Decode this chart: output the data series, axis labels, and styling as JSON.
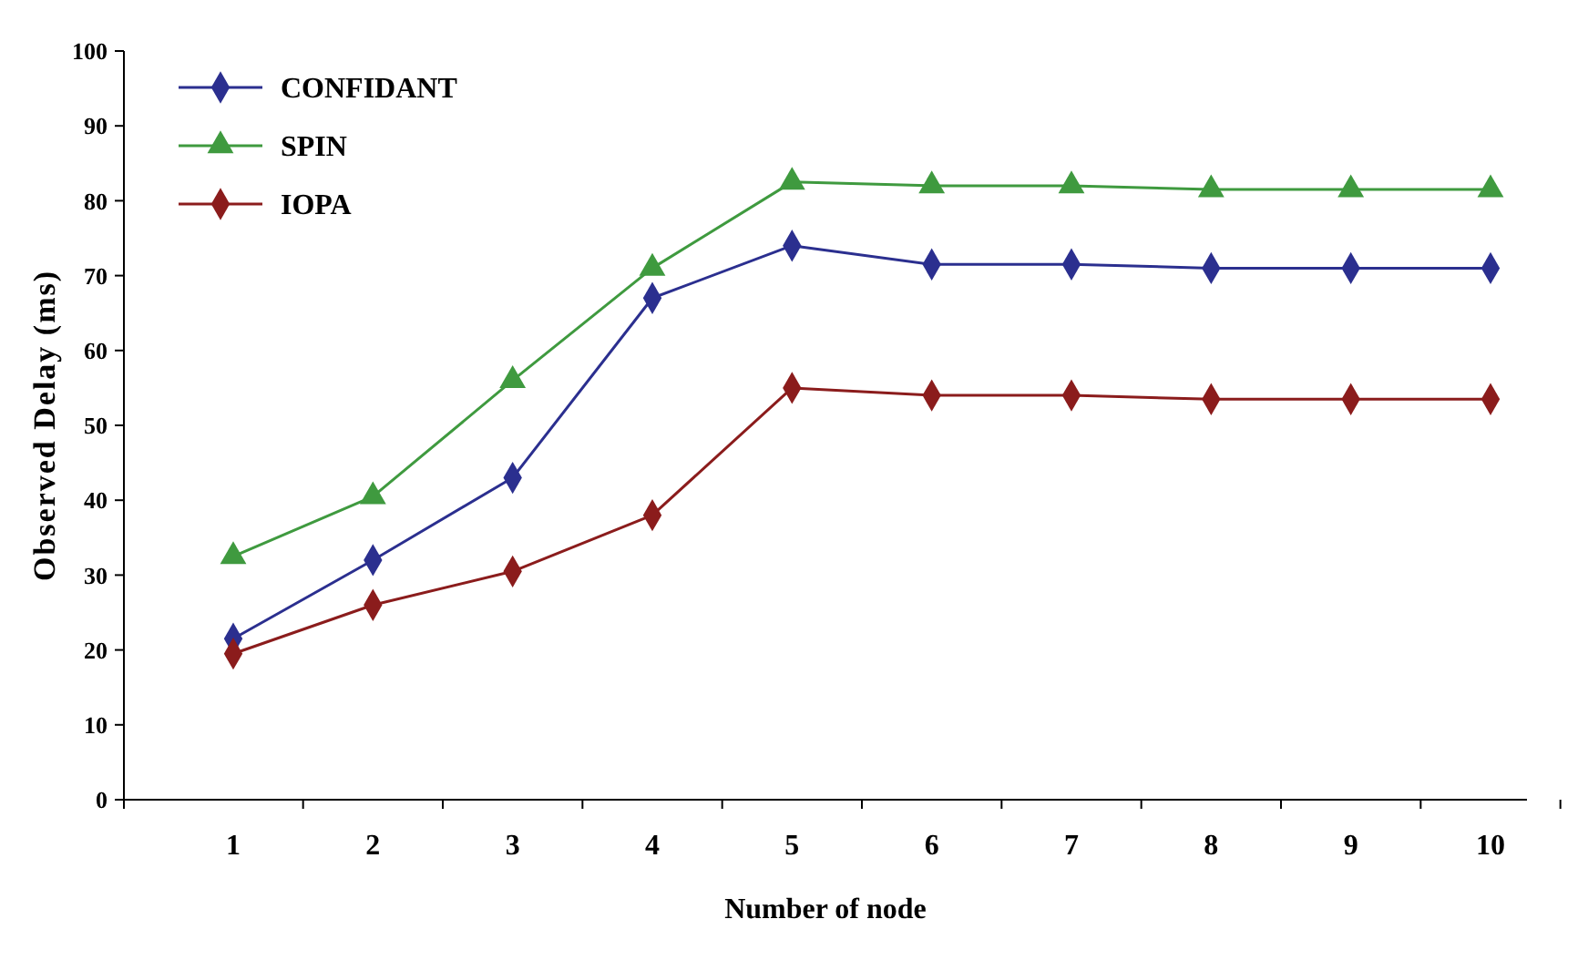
{
  "chart_data": {
    "type": "line",
    "xlabel": "Number of node",
    "ylabel": "Observed Delay (ms)",
    "categories": [
      "1",
      "2",
      "3",
      "4",
      "5",
      "6",
      "7",
      "8",
      "9",
      "10"
    ],
    "ylim": [
      0,
      100
    ],
    "yticks": [
      0,
      10,
      20,
      30,
      40,
      50,
      60,
      70,
      80,
      90,
      100
    ],
    "grid": false,
    "legend": "top left",
    "line_style": "solid",
    "series": [
      {
        "name": "CONFIDANT",
        "color": "#2b2f8f",
        "marker": "diamond",
        "values": [
          21.5,
          32,
          43,
          67,
          74,
          71.5,
          71.5,
          71,
          71,
          71
        ]
      },
      {
        "name": "SPIN",
        "color": "#3f9a3f",
        "marker": "triangle",
        "values": [
          32.5,
          40.5,
          56,
          71,
          82.5,
          82,
          82,
          81.5,
          81.5,
          81.5
        ]
      },
      {
        "name": "IOPA",
        "color": "#8b1c1c",
        "marker": "diamond",
        "values": [
          19.5,
          26,
          30.5,
          38,
          55,
          54,
          54,
          53.5,
          53.5,
          53.5
        ]
      }
    ]
  }
}
